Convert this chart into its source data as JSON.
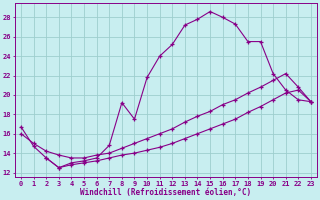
{
  "bg_color": "#c8eef0",
  "grid_color": "#9ecece",
  "line_color": "#880088",
  "xlabel": "Windchill (Refroidissement éolien,°C)",
  "xlim": [
    -0.5,
    23.5
  ],
  "ylim": [
    11.5,
    29.5
  ],
  "xticks": [
    0,
    1,
    2,
    3,
    4,
    5,
    6,
    7,
    8,
    9,
    10,
    11,
    12,
    13,
    14,
    15,
    16,
    17,
    18,
    19,
    20,
    21,
    22,
    23
  ],
  "yticks": [
    12,
    14,
    16,
    18,
    20,
    22,
    24,
    26,
    28
  ],
  "line1_x": [
    0,
    1,
    2,
    3,
    4,
    5,
    6,
    7,
    8,
    9,
    10,
    11,
    12,
    13,
    14,
    15,
    16,
    17,
    18,
    19,
    20,
    21,
    22,
    23
  ],
  "line1_y": [
    16.7,
    14.7,
    13.5,
    12.5,
    13.0,
    13.2,
    13.5,
    14.8,
    19.2,
    17.5,
    21.8,
    24.0,
    25.2,
    27.2,
    27.8,
    28.6,
    28.0,
    27.3,
    25.5,
    25.5,
    22.2,
    20.5,
    19.5,
    19.3
  ],
  "line2_x": [
    0,
    1,
    2,
    3,
    4,
    5,
    6,
    7,
    8,
    9,
    10,
    11,
    12,
    13,
    14,
    15,
    16,
    17,
    18,
    19,
    20,
    21,
    22,
    23
  ],
  "line2_y": [
    16.0,
    15.0,
    14.2,
    13.8,
    13.5,
    13.5,
    13.8,
    14.0,
    14.5,
    15.0,
    15.5,
    16.0,
    16.5,
    17.2,
    17.8,
    18.3,
    19.0,
    19.5,
    20.2,
    20.8,
    21.5,
    22.2,
    20.8,
    19.3
  ],
  "line3_x": [
    2,
    3,
    4,
    5,
    6,
    7,
    8,
    9,
    10,
    11,
    12,
    13,
    14,
    15,
    16,
    17,
    18,
    19,
    20,
    21,
    22,
    23
  ],
  "line3_y": [
    13.5,
    12.5,
    12.8,
    13.0,
    13.2,
    13.5,
    13.8,
    14.0,
    14.3,
    14.6,
    15.0,
    15.5,
    16.0,
    16.5,
    17.0,
    17.5,
    18.2,
    18.8,
    19.5,
    20.2,
    20.5,
    19.3
  ]
}
